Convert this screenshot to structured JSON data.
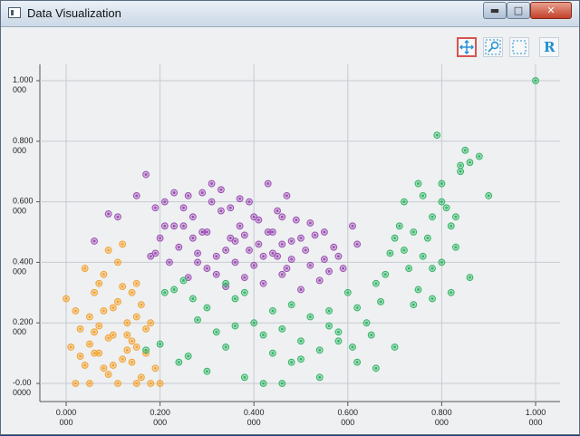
{
  "window": {
    "title": "Data Visualization"
  },
  "toolbar": {
    "icons": [
      "pan-icon",
      "zoom-icon",
      "select-rect-icon",
      "reset-icon"
    ],
    "reset_glyph": "R"
  },
  "colors": {
    "orange": "#f4a12a",
    "purple": "#9b4db3",
    "green": "#2fb564",
    "grid": "#c7ccd2",
    "pan_active": "#d9534f"
  },
  "chart_data": {
    "type": "scatter",
    "title": "",
    "xlabel": "",
    "ylabel": "",
    "xlim": [
      -0.05,
      1.05
    ],
    "ylim": [
      -0.03,
      1.05
    ],
    "grid": true,
    "xticks": [
      {
        "l1": "0.000",
        "l2": "000",
        "v": 0.0
      },
      {
        "l1": "0.200",
        "l2": "000",
        "v": 0.2
      },
      {
        "l1": "0.400",
        "l2": "000",
        "v": 0.4
      },
      {
        "l1": "0.600",
        "l2": "000",
        "v": 0.6
      },
      {
        "l1": "0.800",
        "l2": "000",
        "v": 0.8
      },
      {
        "l1": "1.000",
        "l2": "000",
        "v": 1.0
      }
    ],
    "yticks": [
      {
        "l1": "1.000",
        "l2": "000",
        "v": 1.0
      },
      {
        "l1": "0.800",
        "l2": "000",
        "v": 0.8
      },
      {
        "l1": "0.600",
        "l2": "000",
        "v": 0.6
      },
      {
        "l1": "0.400",
        "l2": "000",
        "v": 0.4
      },
      {
        "l1": "0.200",
        "l2": "000",
        "v": 0.2
      },
      {
        "l1": "-0.00",
        "l2": "0000",
        "v": 0.0
      }
    ],
    "series": [
      {
        "color": "#f4a12a",
        "points": [
          [
            0.0,
            0.28
          ],
          [
            0.01,
            0.12
          ],
          [
            0.02,
            0.0
          ],
          [
            0.03,
            0.18
          ],
          [
            0.04,
            0.38
          ],
          [
            0.05,
            0.22
          ],
          [
            0.06,
            0.1
          ],
          [
            0.07,
            0.33
          ],
          [
            0.08,
            0.05
          ],
          [
            0.09,
            0.15
          ],
          [
            0.1,
            0.25
          ],
          [
            0.11,
            0.4
          ],
          [
            0.12,
            0.08
          ],
          [
            0.13,
            0.2
          ],
          [
            0.14,
            0.3
          ],
          [
            0.15,
            0.12
          ],
          [
            0.16,
            0.02
          ],
          [
            0.17,
            0.18
          ],
          [
            0.18,
            0.0
          ],
          [
            0.05,
            0.13
          ],
          [
            0.07,
            0.19
          ],
          [
            0.09,
            0.03
          ],
          [
            0.11,
            0.27
          ],
          [
            0.13,
            0.11
          ],
          [
            0.15,
            0.22
          ],
          [
            0.04,
            0.06
          ],
          [
            0.06,
            0.3
          ],
          [
            0.08,
            0.24
          ],
          [
            0.1,
            0.16
          ],
          [
            0.12,
            0.32
          ],
          [
            0.14,
            0.07
          ],
          [
            0.16,
            0.26
          ],
          [
            0.02,
            0.24
          ],
          [
            0.03,
            0.09
          ],
          [
            0.12,
            0.46
          ],
          [
            0.09,
            0.44
          ],
          [
            0.17,
            0.1
          ],
          [
            0.05,
            0.0
          ],
          [
            0.15,
            0.0
          ],
          [
            0.19,
            0.05
          ],
          [
            0.2,
            0.0
          ],
          [
            0.11,
            0.0
          ],
          [
            0.13,
            0.16
          ],
          [
            0.07,
            0.1
          ],
          [
            0.1,
            0.06
          ],
          [
            0.08,
            0.36
          ],
          [
            0.06,
            0.17
          ],
          [
            0.15,
            0.33
          ],
          [
            0.18,
            0.2
          ],
          [
            0.14,
            0.14
          ]
        ]
      },
      {
        "color": "#9b4db3",
        "points": [
          [
            0.06,
            0.47
          ],
          [
            0.09,
            0.56
          ],
          [
            0.11,
            0.55
          ],
          [
            0.15,
            0.62
          ],
          [
            0.17,
            0.69
          ],
          [
            0.19,
            0.58
          ],
          [
            0.21,
            0.6
          ],
          [
            0.23,
            0.63
          ],
          [
            0.25,
            0.52
          ],
          [
            0.27,
            0.55
          ],
          [
            0.29,
            0.5
          ],
          [
            0.31,
            0.6
          ],
          [
            0.33,
            0.57
          ],
          [
            0.35,
            0.48
          ],
          [
            0.37,
            0.52
          ],
          [
            0.39,
            0.44
          ],
          [
            0.41,
            0.46
          ],
          [
            0.43,
            0.5
          ],
          [
            0.45,
            0.42
          ],
          [
            0.47,
            0.38
          ],
          [
            0.49,
            0.54
          ],
          [
            0.51,
            0.44
          ],
          [
            0.53,
            0.49
          ],
          [
            0.55,
            0.41
          ],
          [
            0.57,
            0.45
          ],
          [
            0.59,
            0.38
          ],
          [
            0.61,
            0.52
          ],
          [
            0.62,
            0.46
          ],
          [
            0.2,
            0.48
          ],
          [
            0.22,
            0.4
          ],
          [
            0.24,
            0.45
          ],
          [
            0.26,
            0.35
          ],
          [
            0.28,
            0.43
          ],
          [
            0.3,
            0.38
          ],
          [
            0.32,
            0.42
          ],
          [
            0.34,
            0.32
          ],
          [
            0.36,
            0.4
          ],
          [
            0.38,
            0.35
          ],
          [
            0.4,
            0.39
          ],
          [
            0.42,
            0.33
          ],
          [
            0.44,
            0.43
          ],
          [
            0.46,
            0.36
          ],
          [
            0.48,
            0.41
          ],
          [
            0.5,
            0.31
          ],
          [
            0.52,
            0.39
          ],
          [
            0.54,
            0.34
          ],
          [
            0.56,
            0.37
          ],
          [
            0.58,
            0.42
          ],
          [
            0.31,
            0.66
          ],
          [
            0.33,
            0.64
          ],
          [
            0.29,
            0.63
          ],
          [
            0.35,
            0.58
          ],
          [
            0.37,
            0.61
          ],
          [
            0.39,
            0.6
          ],
          [
            0.41,
            0.54
          ],
          [
            0.43,
            0.66
          ],
          [
            0.45,
            0.57
          ],
          [
            0.47,
            0.62
          ],
          [
            0.23,
            0.52
          ],
          [
            0.25,
            0.58
          ],
          [
            0.27,
            0.48
          ],
          [
            0.3,
            0.5
          ],
          [
            0.36,
            0.47
          ],
          [
            0.4,
            0.55
          ],
          [
            0.44,
            0.5
          ],
          [
            0.48,
            0.47
          ],
          [
            0.52,
            0.53
          ],
          [
            0.26,
            0.62
          ],
          [
            0.34,
            0.44
          ],
          [
            0.38,
            0.49
          ],
          [
            0.42,
            0.42
          ],
          [
            0.46,
            0.46
          ],
          [
            0.19,
            0.43
          ],
          [
            0.21,
            0.52
          ],
          [
            0.55,
            0.5
          ],
          [
            0.32,
            0.36
          ],
          [
            0.28,
            0.4
          ],
          [
            0.5,
            0.48
          ],
          [
            0.18,
            0.42
          ],
          [
            0.46,
            0.55
          ]
        ]
      },
      {
        "color": "#2fb564",
        "points": [
          [
            0.21,
            0.3
          ],
          [
            0.23,
            0.31
          ],
          [
            0.25,
            0.34
          ],
          [
            0.27,
            0.28
          ],
          [
            0.28,
            0.21
          ],
          [
            0.3,
            0.25
          ],
          [
            0.32,
            0.17
          ],
          [
            0.34,
            0.33
          ],
          [
            0.36,
            0.28
          ],
          [
            0.38,
            0.3
          ],
          [
            0.4,
            0.2
          ],
          [
            0.42,
            0.16
          ],
          [
            0.44,
            0.24
          ],
          [
            0.46,
            0.18
          ],
          [
            0.48,
            0.26
          ],
          [
            0.5,
            0.14
          ],
          [
            0.52,
            0.22
          ],
          [
            0.54,
            0.11
          ],
          [
            0.56,
            0.19
          ],
          [
            0.58,
            0.17
          ],
          [
            0.6,
            0.3
          ],
          [
            0.62,
            0.25
          ],
          [
            0.64,
            0.2
          ],
          [
            0.66,
            0.33
          ],
          [
            0.68,
            0.36
          ],
          [
            0.7,
            0.48
          ],
          [
            0.72,
            0.44
          ],
          [
            0.74,
            0.5
          ],
          [
            0.76,
            0.42
          ],
          [
            0.78,
            0.55
          ],
          [
            0.8,
            0.6
          ],
          [
            0.82,
            0.52
          ],
          [
            0.84,
            0.72
          ],
          [
            0.86,
            0.73
          ],
          [
            0.88,
            0.75
          ],
          [
            0.9,
            0.62
          ],
          [
            0.17,
            0.11
          ],
          [
            0.2,
            0.13
          ],
          [
            0.24,
            0.07
          ],
          [
            0.26,
            0.09
          ],
          [
            0.3,
            0.04
          ],
          [
            0.34,
            0.12
          ],
          [
            0.38,
            0.02
          ],
          [
            0.42,
            0.0
          ],
          [
            0.46,
            0.0
          ],
          [
            0.5,
            0.08
          ],
          [
            0.54,
            0.02
          ],
          [
            0.58,
            0.14
          ],
          [
            0.62,
            0.07
          ],
          [
            0.66,
            0.05
          ],
          [
            0.7,
            0.12
          ],
          [
            0.74,
            0.26
          ],
          [
            0.78,
            0.28
          ],
          [
            0.82,
            0.3
          ],
          [
            0.86,
            0.35
          ],
          [
            0.72,
            0.6
          ],
          [
            0.76,
            0.62
          ],
          [
            0.8,
            0.66
          ],
          [
            0.84,
            0.7
          ],
          [
            0.75,
            0.66
          ],
          [
            0.8,
            0.4
          ],
          [
            0.77,
            0.48
          ],
          [
            0.73,
            0.38
          ],
          [
            0.69,
            0.43
          ],
          [
            0.71,
            0.52
          ],
          [
            0.83,
            0.45
          ],
          [
            0.79,
            0.82
          ],
          [
            0.85,
            0.77
          ],
          [
            0.81,
            0.58
          ],
          [
            0.65,
            0.16
          ],
          [
            0.44,
            0.1
          ],
          [
            0.36,
            0.19
          ],
          [
            1.0,
            1.0
          ],
          [
            0.48,
            0.07
          ],
          [
            0.56,
            0.24
          ],
          [
            0.61,
            0.12
          ],
          [
            0.67,
            0.27
          ],
          [
            0.78,
            0.38
          ],
          [
            0.75,
            0.31
          ],
          [
            0.83,
            0.55
          ]
        ]
      }
    ]
  }
}
